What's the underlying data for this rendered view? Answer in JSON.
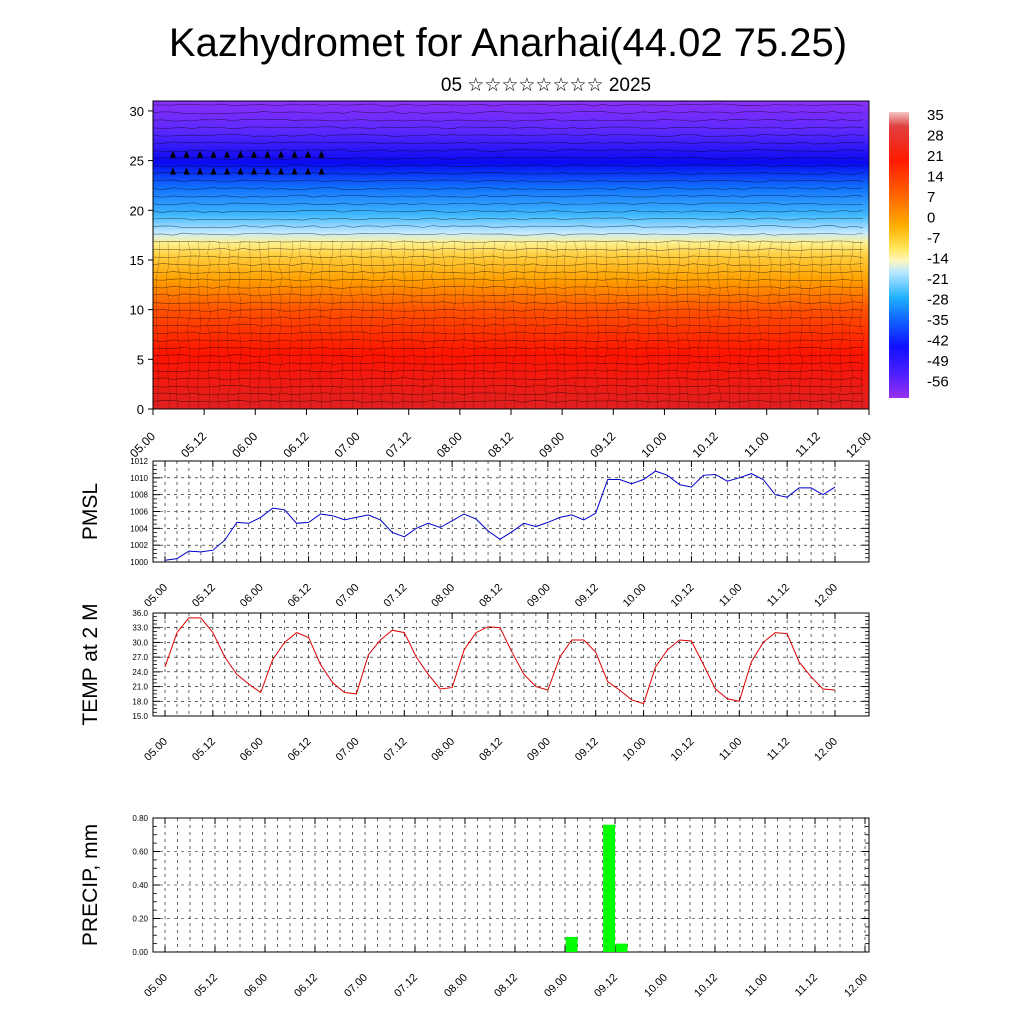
{
  "title": "Kazhydromet for Anarhai(44.02 75.25)",
  "subtitle": "05 ☆☆☆☆☆☆☆☆ 2025",
  "time_labels": [
    "05.00",
    "05.12",
    "06.00",
    "06.12",
    "07.00",
    "07.12",
    "08.00",
    "08.12",
    "09.00",
    "09.12",
    "10.00",
    "10.12",
    "11.00",
    "11.12",
    "12.00"
  ],
  "colorbar": {
    "labels": [
      "35",
      "28",
      "21",
      "14",
      "7",
      "0",
      "-7",
      "-14",
      "-21",
      "-28",
      "-35",
      "-42",
      "-49",
      "-56"
    ]
  },
  "chart_data": [
    {
      "type": "heatmap",
      "title": "Kazhydromet for Anarhai(44.02 75.25)",
      "subtitle": "05 ☆☆☆☆☆☆☆☆ 2025",
      "xlabel": "",
      "ylabel": "",
      "x_ticks": [
        "05.00",
        "05.12",
        "06.00",
        "06.12",
        "07.00",
        "07.12",
        "08.00",
        "08.12",
        "09.00",
        "09.12",
        "10.00",
        "10.12",
        "11.00",
        "11.12",
        "12.00"
      ],
      "y_ticks": [
        0,
        5,
        10,
        15,
        20,
        25,
        30
      ],
      "ylim": [
        0,
        31
      ],
      "colorscale_labels": [
        35,
        28,
        21,
        14,
        7,
        0,
        -7,
        -14,
        -21,
        -28,
        -35,
        -42,
        -49,
        -56
      ],
      "overlay": "wind barbs",
      "levels_sample": [
        {
          "height": 0,
          "value": 30
        },
        {
          "height": 5,
          "value": 21
        },
        {
          "height": 10,
          "value": 14
        },
        {
          "height": 13,
          "value": 0
        },
        {
          "height": 16,
          "value": -10
        },
        {
          "height": 19,
          "value": -30
        },
        {
          "height": 22,
          "value": -45
        },
        {
          "height": 25,
          "value": -60
        },
        {
          "height": 28,
          "value": -55
        },
        {
          "height": 31,
          "value": -52
        }
      ]
    },
    {
      "type": "line",
      "ylabel": "PMSL",
      "ylim": [
        1000,
        1012
      ],
      "y_ticks": [
        "1000",
        "1002",
        "1004",
        "1006",
        "1008",
        "1010",
        "1012"
      ],
      "x_ticks": [
        "05.00",
        "05.12",
        "06.00",
        "06.12",
        "07.00",
        "07.12",
        "08.00",
        "08.12",
        "09.00",
        "09.12",
        "10.00",
        "10.12",
        "11.00",
        "11.12",
        "12.00"
      ],
      "x_step_hours": 3,
      "color": "#0000cc",
      "values": [
        1000.2,
        1000.4,
        1001.3,
        1001.2,
        1001.4,
        1002.6,
        1004.7,
        1004.6,
        1005.3,
        1006.4,
        1006.2,
        1004.6,
        1004.7,
        1005.7,
        1005.5,
        1005.0,
        1005.3,
        1005.6,
        1005.0,
        1003.5,
        1003.0,
        1004.0,
        1004.6,
        1004.1,
        1004.9,
        1005.7,
        1005.1,
        1003.7,
        1002.7,
        1003.6,
        1004.6,
        1004.2,
        1004.7,
        1005.3,
        1005.6,
        1005.0,
        1005.8,
        1009.8,
        1009.8,
        1009.3,
        1009.8,
        1010.8,
        1010.3,
        1009.2,
        1008.9,
        1010.3,
        1010.4,
        1009.6,
        1010.0,
        1010.5,
        1009.8,
        1008.0,
        1007.7,
        1008.8,
        1008.8,
        1008.0,
        1008.9
      ]
    },
    {
      "type": "line",
      "ylabel": "TEMP at 2 M",
      "ylim": [
        15,
        36
      ],
      "y_ticks": [
        "15.0",
        "18.0",
        "21.0",
        "24.0",
        "27.0",
        "30.0",
        "33.0",
        "36.0"
      ],
      "x_ticks": [
        "05.00",
        "05.12",
        "06.00",
        "06.12",
        "07.00",
        "07.12",
        "08.00",
        "08.12",
        "09.00",
        "09.12",
        "10.00",
        "10.12",
        "11.00",
        "11.12",
        "12.00"
      ],
      "x_step_hours": 3,
      "color": "#dd0000",
      "values": [
        25.0,
        32.0,
        35.0,
        35.0,
        32.0,
        27.0,
        23.5,
        21.5,
        19.8,
        26.5,
        30.0,
        32.0,
        31.0,
        25.5,
        21.8,
        19.8,
        19.5,
        27.5,
        30.5,
        32.5,
        32.0,
        27.0,
        23.5,
        20.5,
        20.8,
        28.5,
        32.0,
        33.2,
        33.0,
        28.0,
        23.5,
        21.0,
        20.3,
        27.0,
        30.5,
        30.5,
        28.0,
        22.0,
        20.3,
        18.3,
        17.5,
        25.0,
        28.5,
        30.5,
        30.3,
        25.5,
        20.5,
        18.5,
        18.0,
        26.0,
        30.0,
        32.0,
        31.8,
        26.0,
        23.0,
        20.5,
        20.3
      ]
    },
    {
      "type": "bar",
      "ylabel": "PRECIP, mm",
      "ylim": [
        0,
        0.8
      ],
      "y_ticks": [
        "0.00",
        "0.20",
        "0.40",
        "0.60",
        "0.80"
      ],
      "x_ticks": [
        "05.00",
        "05.12",
        "06.00",
        "06.12",
        "07.00",
        "07.12",
        "08.00",
        "08.12",
        "09.00",
        "09.12",
        "10.00",
        "10.12",
        "11.00",
        "11.12",
        "12.00"
      ],
      "x_step_hours": 3,
      "color": "#00ff00",
      "bars": [
        {
          "x_hours": 99,
          "value": 0.09
        },
        {
          "x_hours": 108,
          "value": 0.76
        },
        {
          "x_hours": 111,
          "value": 0.05
        }
      ]
    }
  ]
}
